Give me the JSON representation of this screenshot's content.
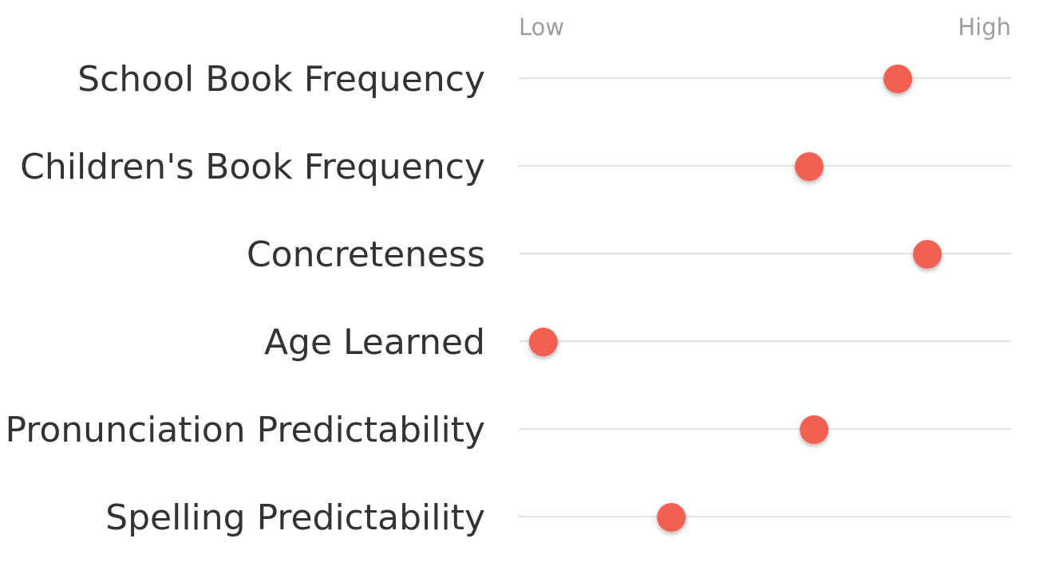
{
  "chart_data": {
    "type": "scatter",
    "title": "",
    "axis": {
      "low_label": "Low",
      "high_label": "High",
      "range": [
        0,
        1
      ]
    },
    "grid": true,
    "legend": "none",
    "categories": [
      "School Book Frequency",
      "Children's Book Frequency",
      "Concreteness",
      "Age Learned",
      "Pronunciation Predictability",
      "Spelling Predictability"
    ],
    "series": [
      {
        "values": [
          0.77,
          0.59,
          0.83,
          0.05,
          0.6,
          0.31
        ],
        "color": "#f25e52"
      }
    ]
  }
}
